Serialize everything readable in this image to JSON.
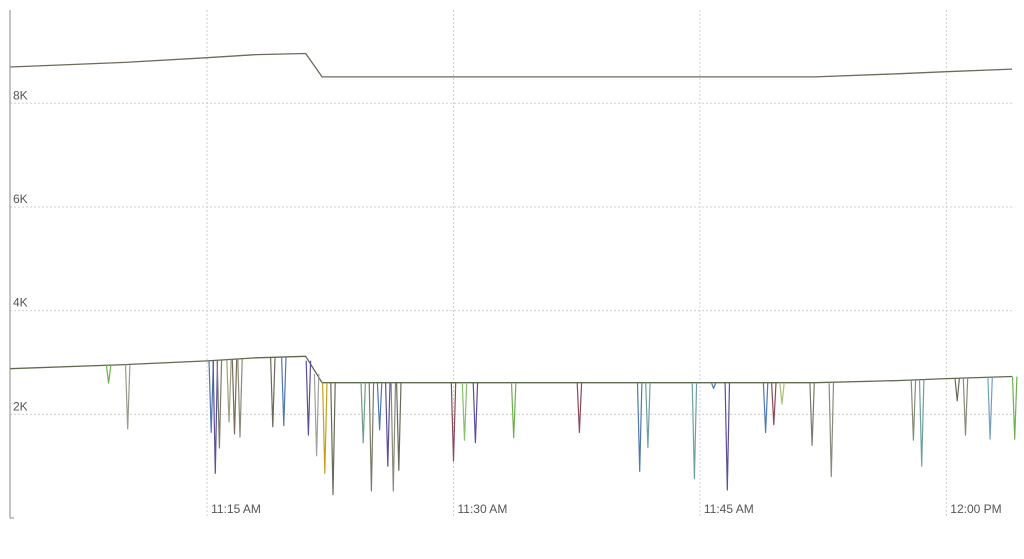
{
  "chart_data": {
    "type": "line",
    "title": "",
    "xlabel": "",
    "ylabel": "",
    "ylim": [
      0,
      9800
    ],
    "xlim": [
      "11:03 AM",
      "12:04 PM"
    ],
    "x_ticks": [
      "11:15 AM",
      "11:30 AM",
      "11:45 AM",
      "12:00 PM"
    ],
    "y_ticks": [
      {
        "value": 2000,
        "label": "2K"
      },
      {
        "value": 4000,
        "label": "4K"
      },
      {
        "value": 6000,
        "label": "6K"
      },
      {
        "value": 8000,
        "label": "8K"
      }
    ],
    "grid": true,
    "legend": "none",
    "series": [
      {
        "color": "#6f6a58",
        "points": [
          [
            "11:03 AM",
            8700
          ],
          [
            "11:10 AM",
            8790
          ],
          [
            "11:15 AM",
            8880
          ],
          [
            "11:18 AM",
            8940
          ],
          [
            "11:21 AM",
            8960
          ],
          [
            "11:22 AM",
            8510
          ],
          [
            "11:30 AM",
            8510
          ],
          [
            "11:40 AM",
            8510
          ],
          [
            "11:52 AM",
            8510
          ],
          [
            "11:57 AM",
            8570
          ],
          [
            "12:00 PM",
            8610
          ],
          [
            "12:04 PM",
            8660
          ]
        ]
      },
      {
        "color": "#5e6a4e",
        "points": [
          [
            "11:03 AM",
            2880
          ],
          [
            "11:10 AM",
            2960
          ],
          [
            "11:15 AM",
            3030
          ],
          [
            "11:18 AM",
            3090
          ],
          [
            "11:21 AM",
            3120
          ],
          [
            "11:22 AM",
            2610
          ],
          [
            "11:30 AM",
            2610
          ],
          [
            "11:40 AM",
            2610
          ],
          [
            "11:52 AM",
            2610
          ],
          [
            "11:57 AM",
            2650
          ],
          [
            "12:00 PM",
            2690
          ],
          [
            "12:04 PM",
            2730
          ]
        ]
      }
    ],
    "spikes": [
      {
        "time": "11:09 AM",
        "value": 2600,
        "color": "#6fb04f"
      },
      {
        "time": "11:10:10 AM",
        "value": 1720,
        "color": "#9a9a8a"
      },
      {
        "time": "11:15:15 AM",
        "value": 1650,
        "color": "#4f77b0"
      },
      {
        "time": "11:15:30 AM",
        "value": 860,
        "color": "#5a4f98"
      },
      {
        "time": "11:15:45 AM",
        "value": 1350,
        "color": "#7a7a6a"
      },
      {
        "time": "11:16:20 AM",
        "value": 1850,
        "color": "#a0a080"
      },
      {
        "time": "11:16:40 AM",
        "value": 1620,
        "color": "#7a6a5a"
      },
      {
        "time": "11:17:00 AM",
        "value": 1560,
        "color": "#8a8a7a"
      },
      {
        "time": "11:19:00 AM",
        "value": 1760,
        "color": "#6a6a5a"
      },
      {
        "time": "11:19:40 AM",
        "value": 1780,
        "color": "#4f77b0"
      },
      {
        "time": "11:21:10 AM",
        "value": 1600,
        "color": "#5a4f98"
      },
      {
        "time": "11:21:40 AM",
        "value": 1200,
        "color": "#a0a0a0"
      },
      {
        "time": "11:22:10 AM",
        "value": 860,
        "color": "#c8a020"
      },
      {
        "time": "11:22:40 AM",
        "value": 450,
        "color": "#6a6a5a"
      },
      {
        "time": "11:24:30 AM",
        "value": 1450,
        "color": "#6fa080"
      },
      {
        "time": "11:25:00 AM",
        "value": 520,
        "color": "#7a7a6a"
      },
      {
        "time": "11:25:30 AM",
        "value": 1700,
        "color": "#4f77b0"
      },
      {
        "time": "11:26:00 AM",
        "value": 1000,
        "color": "#5a4f98"
      },
      {
        "time": "11:26:20 AM",
        "value": 520,
        "color": "#8a8a7a"
      },
      {
        "time": "11:26:40 AM",
        "value": 920,
        "color": "#6a6a5a"
      },
      {
        "time": "11:30:00 AM",
        "value": 1100,
        "color": "#8a4a5a"
      },
      {
        "time": "11:30:40 AM",
        "value": 1500,
        "color": "#88c070"
      },
      {
        "time": "11:31:20 AM",
        "value": 1450,
        "color": "#5a4f98"
      },
      {
        "time": "11:33:40 AM",
        "value": 1550,
        "color": "#6fb04f"
      },
      {
        "time": "11:37:40 AM",
        "value": 1650,
        "color": "#8a4a5a"
      },
      {
        "time": "11:41:20 AM",
        "value": 900,
        "color": "#4f77b0"
      },
      {
        "time": "11:41:50 AM",
        "value": 1360,
        "color": "#6fa0a0"
      },
      {
        "time": "11:44:40 AM",
        "value": 760,
        "color": "#6fa0a0"
      },
      {
        "time": "11:46:40 AM",
        "value": 540,
        "color": "#5a4f98"
      },
      {
        "time": "11:45:50 AM",
        "value": 2500,
        "color": "#4f77b0"
      },
      {
        "time": "11:49:00 AM",
        "value": 1650,
        "color": "#4f77b0"
      },
      {
        "time": "11:49:30 AM",
        "value": 1800,
        "color": "#8a4a5a"
      },
      {
        "time": "11:50:00 AM",
        "value": 2200,
        "color": "#aac070"
      },
      {
        "time": "11:51:50 AM",
        "value": 1400,
        "color": "#7a7a6a"
      },
      {
        "time": "11:53:00 AM",
        "value": 800,
        "color": "#8a8a7a"
      },
      {
        "time": "11:58:00 AM",
        "value": 1500,
        "color": "#8a8a7a"
      },
      {
        "time": "11:58:30 AM",
        "value": 1000,
        "color": "#6fa0a0"
      },
      {
        "time": "12:00:40 PM",
        "value": 2260,
        "color": "#6a6a5a"
      },
      {
        "time": "12:01:10 PM",
        "value": 1600,
        "color": "#8a8a7a"
      },
      {
        "time": "12:02:40 PM",
        "value": 1520,
        "color": "#6fa0c0"
      },
      {
        "time": "12:04:10 PM",
        "value": 1520,
        "color": "#6fb04f"
      }
    ]
  }
}
